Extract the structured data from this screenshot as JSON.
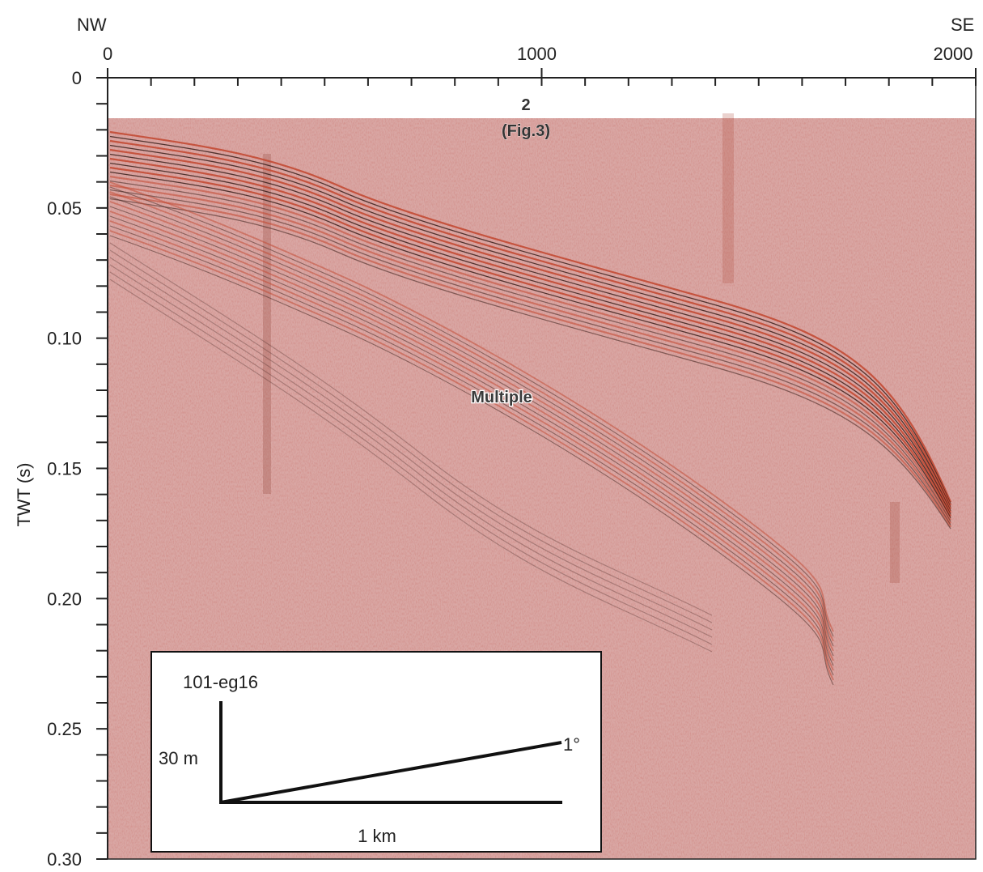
{
  "header": {
    "left_direction": "NW",
    "right_direction": "SE"
  },
  "x_axis": {
    "ticks": [
      {
        "value": 0,
        "label": "0"
      },
      {
        "value": 1000,
        "label": "1000"
      },
      {
        "value": 2000,
        "label": "2000"
      }
    ],
    "range": [
      0,
      2000
    ],
    "minor_tick_step": 100
  },
  "y_axis": {
    "title": "TWT (s)",
    "range": [
      0,
      0.3
    ],
    "ticks": [
      {
        "value": 0,
        "label": "0"
      },
      {
        "value": 0.05,
        "label": "0.05"
      },
      {
        "value": 0.1,
        "label": "0.10"
      },
      {
        "value": 0.15,
        "label": "0.15"
      },
      {
        "value": 0.2,
        "label": "0.20"
      },
      {
        "value": 0.25,
        "label": "0.25"
      },
      {
        "value": 0.3,
        "label": "0.30"
      }
    ],
    "minor_tick_step": 0.01
  },
  "section": {
    "marker_number": "2",
    "marker_reference": "(Fig.3)",
    "multiple_label": "Multiple",
    "background_color": "#d9a7a4",
    "reflector_color": "#c2452e",
    "reflector_dark_color": "#3a1f1a"
  },
  "inset": {
    "line_name": "101-eg16",
    "vertical_scale": "30 m",
    "horizontal_scale": "1 km",
    "angle_label": "1°"
  }
}
